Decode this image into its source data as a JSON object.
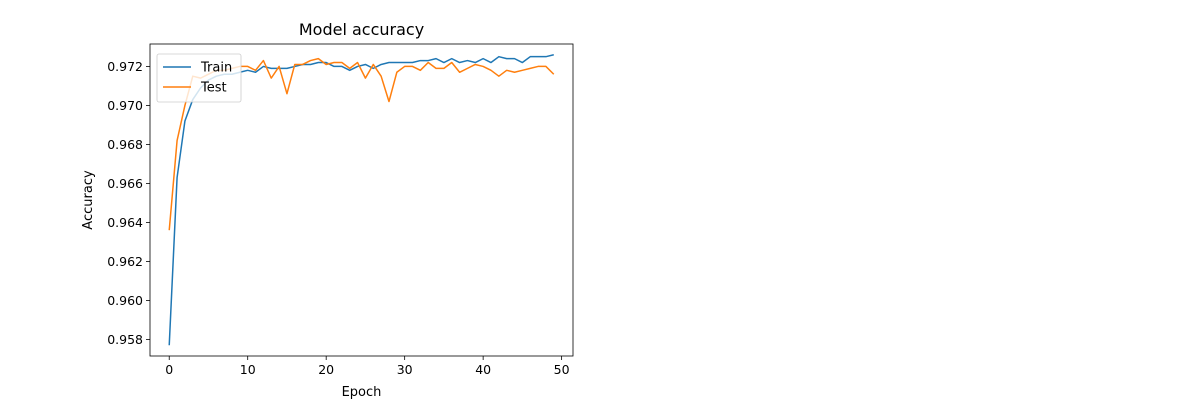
{
  "chart_data": {
    "type": "line",
    "title": "Model accuracy",
    "xlabel": "Epoch",
    "ylabel": "Accuracy",
    "xlim": [
      -2.45,
      51.45
    ],
    "ylim": [
      0.95715,
      0.97315
    ],
    "xticks": [
      0,
      10,
      20,
      30,
      40,
      50
    ],
    "yticks": [
      0.958,
      0.96,
      0.962,
      0.964,
      0.966,
      0.968,
      0.97,
      0.972
    ],
    "ytick_labels": [
      "0.958",
      "0.960",
      "0.962",
      "0.964",
      "0.966",
      "0.968",
      "0.970",
      "0.972"
    ],
    "grid": false,
    "legend_position": "top-left",
    "x": [
      0,
      1,
      2,
      3,
      4,
      5,
      6,
      7,
      8,
      9,
      10,
      11,
      12,
      13,
      14,
      15,
      16,
      17,
      18,
      19,
      20,
      21,
      22,
      23,
      24,
      25,
      26,
      27,
      28,
      29,
      30,
      31,
      32,
      33,
      34,
      35,
      36,
      37,
      38,
      39,
      40,
      41,
      42,
      43,
      44,
      45,
      46,
      47,
      48,
      49
    ],
    "series": [
      {
        "name": "Train",
        "color": "#1f77b4",
        "values": [
          0.9577,
          0.9663,
          0.9692,
          0.9703,
          0.9709,
          0.9713,
          0.9715,
          0.9716,
          0.9716,
          0.9717,
          0.9718,
          0.9717,
          0.972,
          0.9719,
          0.9719,
          0.9719,
          0.972,
          0.9721,
          0.9721,
          0.9722,
          0.9722,
          0.972,
          0.972,
          0.9718,
          0.972,
          0.9721,
          0.9719,
          0.9721,
          0.9722,
          0.9722,
          0.9722,
          0.9722,
          0.9723,
          0.9723,
          0.9724,
          0.9722,
          0.9724,
          0.9722,
          0.9723,
          0.9722,
          0.9724,
          0.9722,
          0.9725,
          0.9724,
          0.9724,
          0.9722,
          0.9725,
          0.9725,
          0.9725,
          0.9726
        ]
      },
      {
        "name": "Test",
        "color": "#ff7f0e",
        "values": [
          0.9636,
          0.9682,
          0.97,
          0.9715,
          0.9714,
          0.9716,
          0.9718,
          0.9718,
          0.9719,
          0.972,
          0.972,
          0.9718,
          0.9723,
          0.9714,
          0.972,
          0.9706,
          0.9721,
          0.9721,
          0.9723,
          0.9724,
          0.9721,
          0.9722,
          0.9722,
          0.9719,
          0.9722,
          0.9714,
          0.9721,
          0.9715,
          0.9702,
          0.9717,
          0.972,
          0.972,
          0.9718,
          0.9722,
          0.9719,
          0.9719,
          0.9722,
          0.9717,
          0.9719,
          0.9721,
          0.972,
          0.9718,
          0.9715,
          0.9718,
          0.9717,
          0.9718,
          0.9719,
          0.972,
          0.972,
          0.9716
        ]
      }
    ]
  }
}
